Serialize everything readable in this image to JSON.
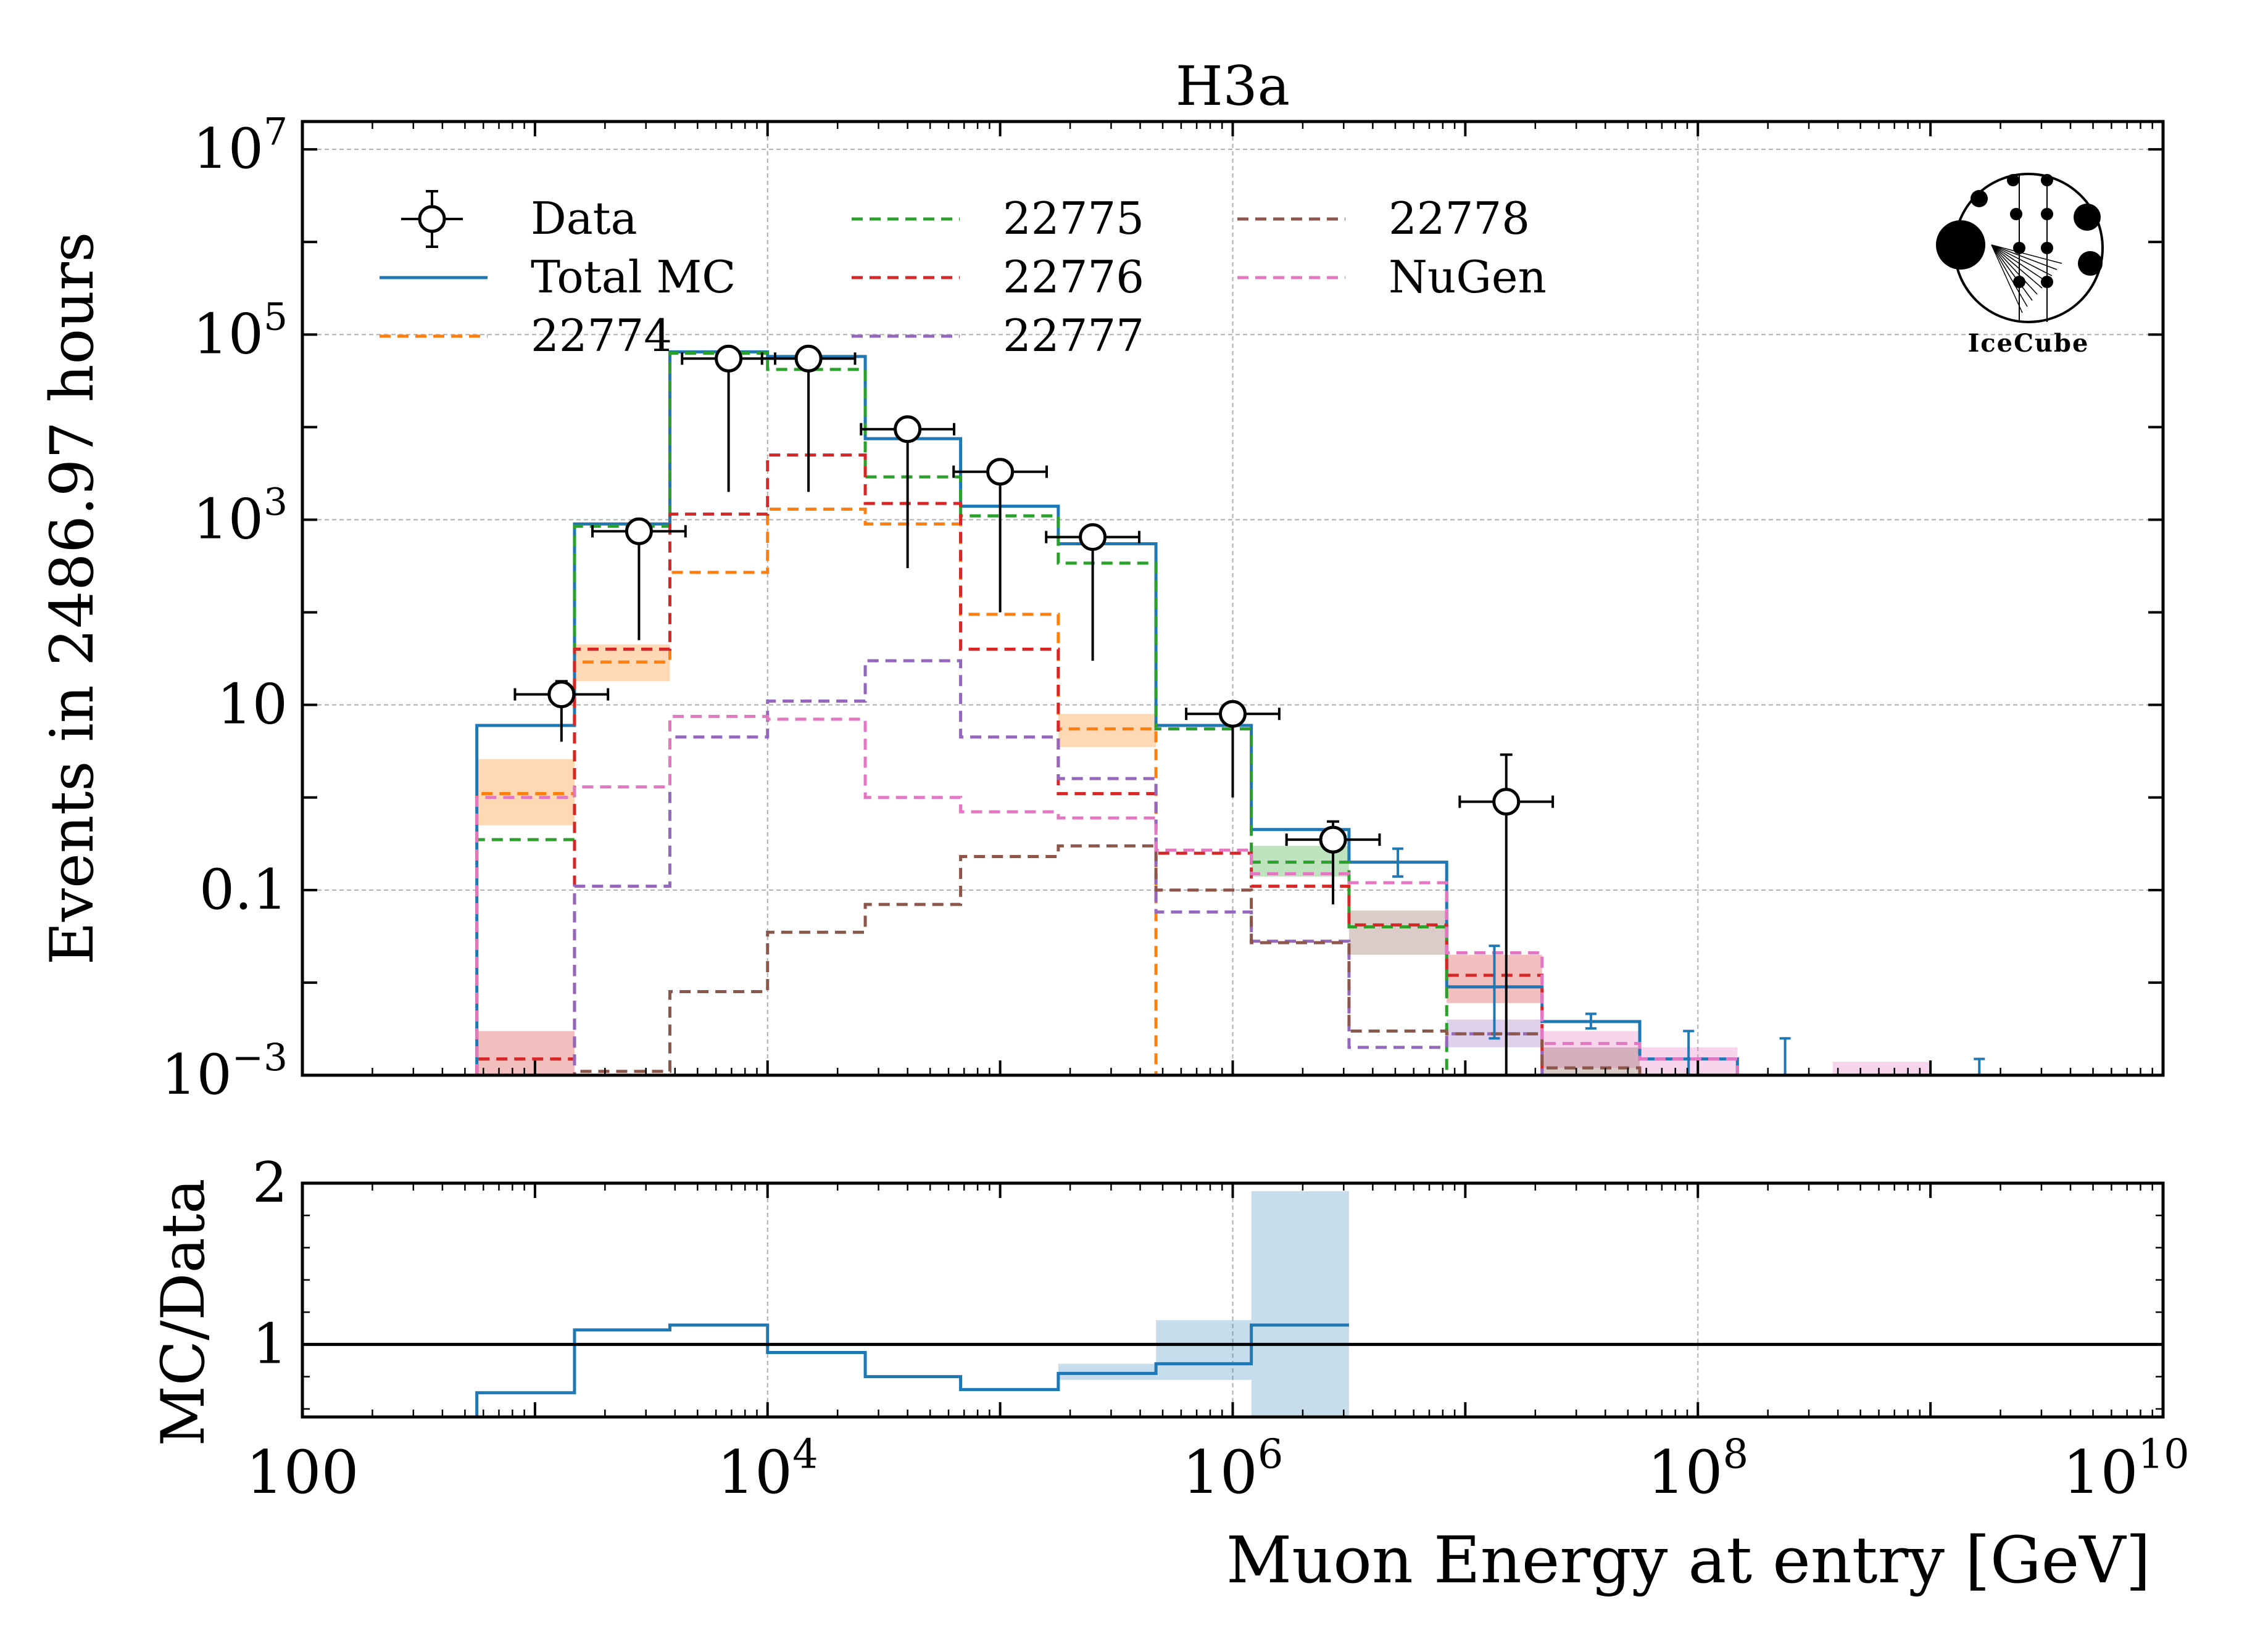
{
  "chart_data": [
    {
      "type": "step-histogram",
      "title": "H3a",
      "ylabel": "Events in 2486.97 hours",
      "xlabel": "",
      "xscale": "log",
      "yscale": "log",
      "xlim": [
        100,
        10000000000
      ],
      "ylim": [
        0.001,
        20000000
      ],
      "grid": true,
      "legend_position": "top-left",
      "x_tick_labels": [
        "100",
        "10^4",
        "10^6",
        "10^8",
        "10^10"
      ],
      "y_tick_labels": [
        "10^-3",
        "0.1",
        "10",
        "10^3",
        "10^5",
        "10^7"
      ],
      "logo_text": "IceCube",
      "bin_edges_log10": [
        2.75,
        3.17,
        3.58,
        4.0,
        4.42,
        4.83,
        5.25,
        5.67,
        6.08,
        6.5,
        6.92,
        7.33,
        7.75,
        8.17,
        8.58,
        9.0,
        9.42
      ],
      "series": [
        {
          "name": "Data",
          "kind": "points",
          "color": "#000000",
          "x": [
            1300,
            2800,
            6800,
            15000,
            40000,
            100000,
            250000,
            1000000,
            2700000,
            15000000
          ],
          "y": [
            13,
            750,
            55000,
            55000,
            9500,
            3300,
            650,
            8,
            0.35,
            0.9
          ],
          "yerr_low": [
            9,
            700,
            53000,
            53000,
            9200,
            3200,
            620,
            7,
            0.28,
            0.9
          ],
          "yerr_high": [
            18,
            820,
            57000,
            57000,
            9800,
            3400,
            680,
            9,
            0.55,
            2.9
          ]
        },
        {
          "name": "Total MC",
          "kind": "step",
          "color": "#1f77b4",
          "dash": false,
          "values": [
            6,
            900,
            65000,
            58000,
            7500,
            1400,
            550,
            6,
            0.45,
            0.2,
            0.009,
            0.0038,
            0.0015,
            0.001,
            0.001,
            0.001,
            0.001
          ]
        },
        {
          "name": "22774",
          "kind": "step",
          "color": "#ff7f0e",
          "dash": true,
          "values": [
            1.1,
            29,
            270,
            1300,
            900,
            95,
            5.5,
            0.001,
            0.001,
            0.001,
            0.001,
            0.001,
            0.001,
            0.001,
            0.001,
            0.001,
            0.001
          ]
        },
        {
          "name": "22775",
          "kind": "step",
          "color": "#2ca02c",
          "dash": true,
          "values": [
            0.35,
            850,
            63000,
            42000,
            2900,
            1100,
            340,
            5.5,
            0.2,
            0.04,
            0.001,
            0.001,
            0.001,
            0.001,
            0.001,
            0.001,
            0.001
          ]
        },
        {
          "name": "22776",
          "kind": "step",
          "color": "#d62728",
          "dash": true,
          "values": [
            0.0015,
            40,
            1150,
            5000,
            1500,
            40,
            1.1,
            0.25,
            0.11,
            0.042,
            0.012,
            0.001,
            0.001,
            0.001,
            0.001,
            0.001,
            0.001
          ]
        },
        {
          "name": "22777",
          "kind": "step",
          "color": "#9467bd",
          "dash": true,
          "values": [
            0.001,
            0.11,
            4.5,
            11,
            30,
            4.5,
            1.6,
            0.058,
            0.028,
            0.002,
            0.0028,
            0.001,
            0.001,
            0.001,
            0.001,
            0.001,
            0.001
          ]
        },
        {
          "name": "22778",
          "kind": "step",
          "color": "#8c564b",
          "dash": true,
          "values": [
            0.001,
            0.0011,
            0.008,
            0.035,
            0.07,
            0.23,
            0.3,
            0.1,
            0.027,
            0.003,
            0.0028,
            0.0012,
            0.001,
            0.001,
            0.001,
            0.001,
            0.001
          ]
        },
        {
          "name": "NuGen",
          "kind": "step",
          "color": "#e377c2",
          "dash": true,
          "values": [
            1.0,
            1.3,
            7.5,
            7,
            1.0,
            0.7,
            0.6,
            0.27,
            0.15,
            0.12,
            0.021,
            0.0022,
            0.0015,
            0.001,
            0.001,
            0.001,
            0.001
          ]
        }
      ]
    },
    {
      "type": "step-histogram",
      "xlabel": "Muon Energy at entry [GeV]",
      "ylabel": "MC/Data",
      "xscale": "log",
      "xlim": [
        100,
        10000000000
      ],
      "ylim": [
        0.55,
        2.0
      ],
      "y_tick_labels": [
        "1",
        "2"
      ],
      "x_tick_labels": [
        "100",
        "10^4",
        "10^6",
        "10^8",
        "10^10"
      ],
      "reference_line": 1,
      "series": [
        {
          "name": "MC/Data",
          "kind": "step",
          "color": "#1f77b4",
          "bin_edges_log10": [
            2.75,
            3.17,
            3.58,
            4.0,
            4.42,
            4.83,
            5.25,
            5.67,
            6.08,
            6.5
          ],
          "values": [
            0.7,
            1.09,
            1.12,
            0.95,
            0.8,
            0.72,
            0.82,
            0.88,
            1.12
          ],
          "band_low": [
            0.7,
            1.09,
            1.12,
            0.95,
            0.8,
            0.72,
            0.78,
            0.78,
            0.55
          ],
          "band_high": [
            0.7,
            1.09,
            1.12,
            0.95,
            0.8,
            0.72,
            0.88,
            1.15,
            1.95
          ]
        }
      ]
    }
  ]
}
